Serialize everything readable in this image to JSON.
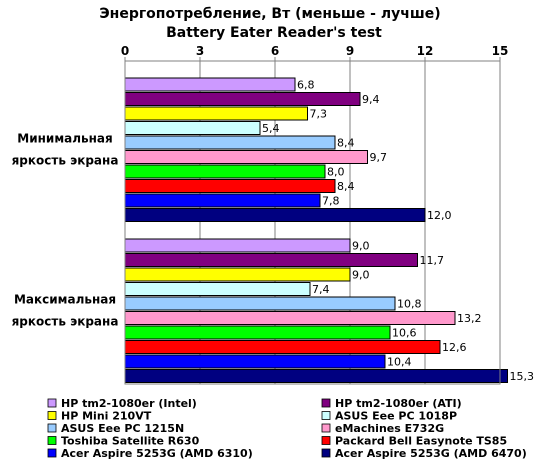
{
  "chart_data": {
    "type": "bar",
    "orientation": "horizontal",
    "title": "Энергопотребление, Вт (меньше - лучше)",
    "subtitle": "Battery Eater Reader's test",
    "xlim": [
      0,
      15
    ],
    "xticks": [
      "0",
      "3",
      "6",
      "9",
      "12",
      "15"
    ],
    "grid": "vertical",
    "legend": "bottom, two columns",
    "categories": [
      [
        "Минимальная",
        "яркость экрана"
      ],
      [
        "Максимальная",
        "яркость экрана"
      ]
    ],
    "series": [
      {
        "name": "HP tm2-1080er (Intel)",
        "color": "#cc99ff",
        "values": [
          6.8,
          9.0
        ],
        "labels": [
          "6,8",
          "9,0"
        ]
      },
      {
        "name": "HP tm2-1080er (ATI)",
        "color": "#800080",
        "values": [
          9.4,
          11.7
        ],
        "labels": [
          "9,4",
          "11,7"
        ]
      },
      {
        "name": "HP Mini 210VT",
        "color": "#ffff00",
        "values": [
          7.3,
          9.0
        ],
        "labels": [
          "7,3",
          "9,0"
        ]
      },
      {
        "name": "ASUS Eee PC 1018P",
        "color": "#ccffff",
        "values": [
          5.4,
          7.4
        ],
        "labels": [
          "5,4",
          "7,4"
        ]
      },
      {
        "name": "ASUS Eee PC 1215N",
        "color": "#99ccff",
        "values": [
          8.4,
          10.8
        ],
        "labels": [
          "8,4",
          "10,8"
        ]
      },
      {
        "name": "eMachines E732G",
        "color": "#ff99cc",
        "values": [
          9.7,
          13.2
        ],
        "labels": [
          "9,7",
          "13,2"
        ]
      },
      {
        "name": "Toshiba Satellite R630",
        "color": "#00ff00",
        "values": [
          8.0,
          10.6
        ],
        "labels": [
          "8,0",
          "10,6"
        ]
      },
      {
        "name": "Packard Bell Easynote TS85",
        "color": "#ff0000",
        "values": [
          8.4,
          12.6
        ],
        "labels": [
          "8,4",
          "12,6"
        ]
      },
      {
        "name": "Acer Aspire 5253G (AMD 6310)",
        "color": "#0000ff",
        "values": [
          7.8,
          10.4
        ],
        "labels": [
          "7,8",
          "10,4"
        ]
      },
      {
        "name": "Acer Aspire 5253G (AMD 6470)",
        "color": "#000080",
        "values": [
          12.0,
          15.3
        ],
        "labels": [
          "12,0",
          "15,3"
        ]
      }
    ]
  }
}
